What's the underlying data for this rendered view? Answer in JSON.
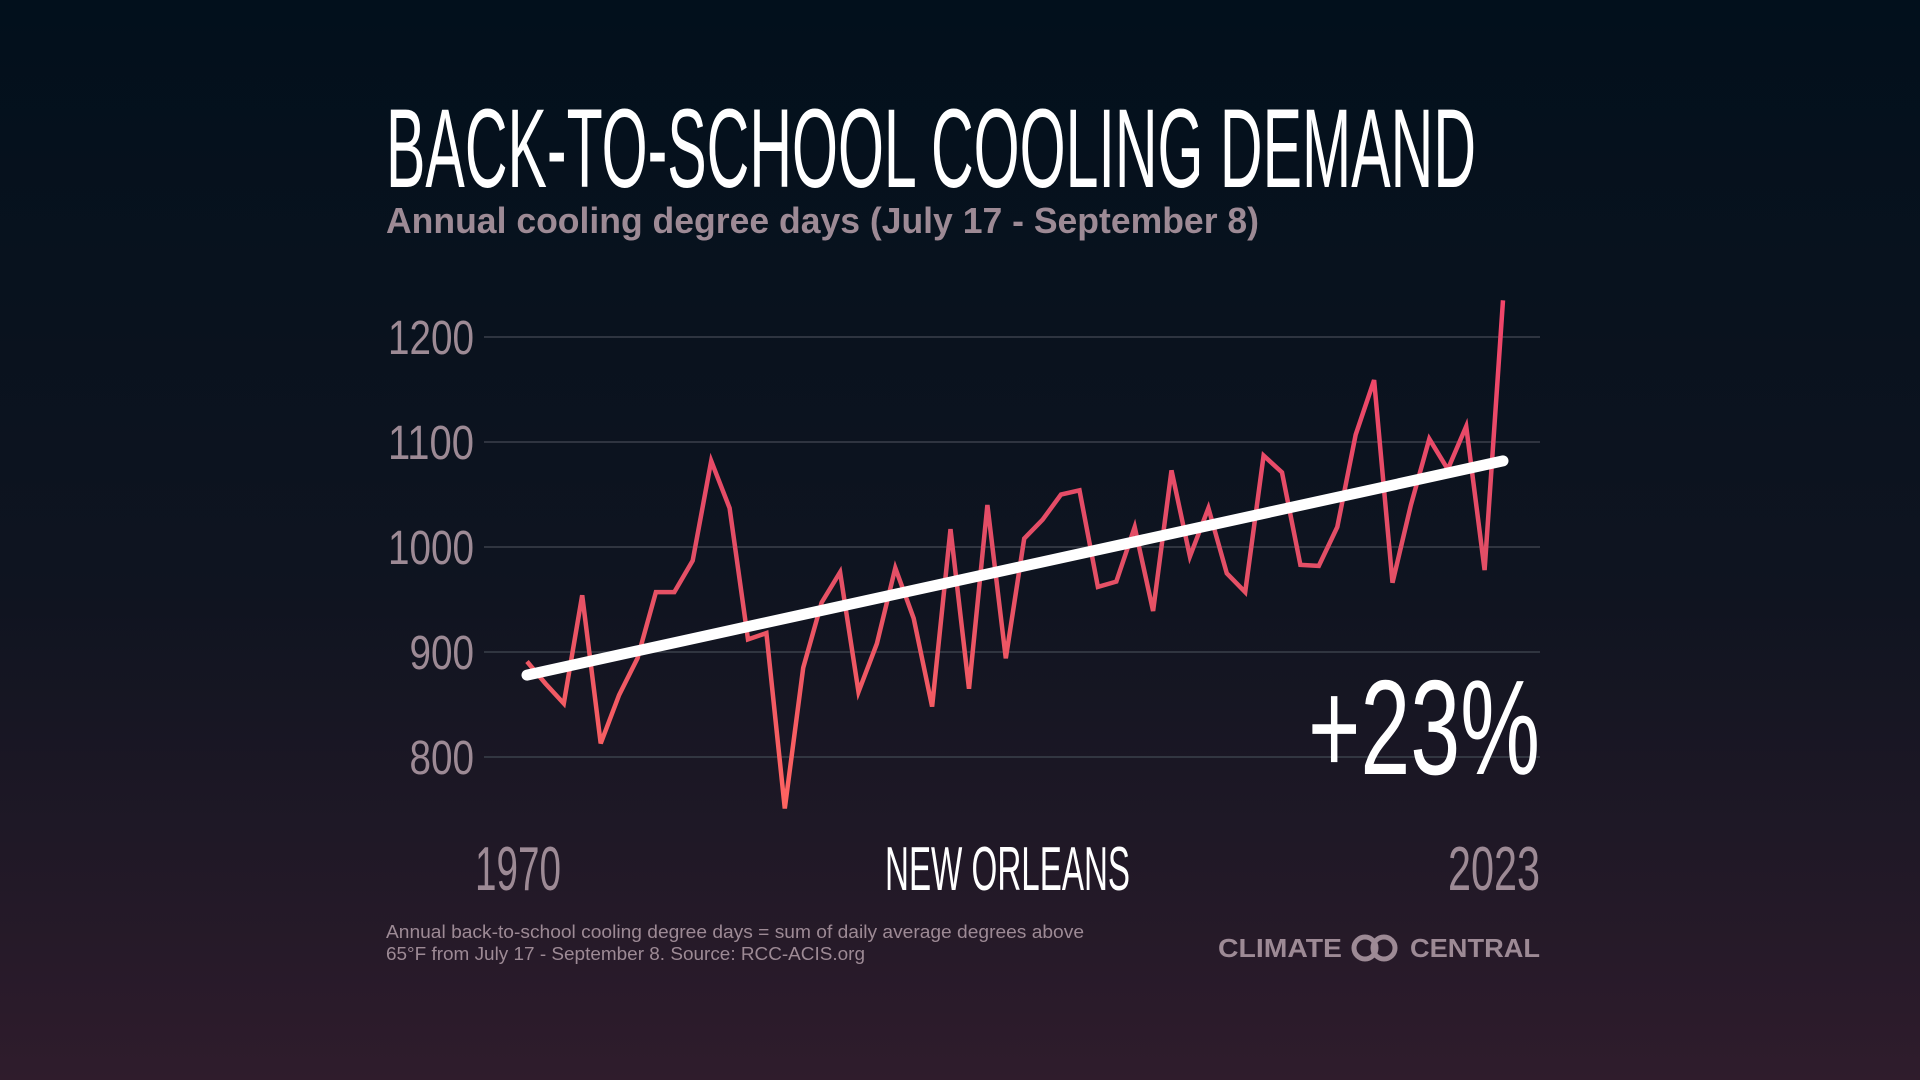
{
  "header": {
    "title": "BACK-TO-SCHOOL COOLING DEMAND",
    "subtitle": "Annual cooling degree days (July 17 - September 8)"
  },
  "chart_data": {
    "type": "line",
    "title": "BACK-TO-SCHOOL COOLING DEMAND",
    "subtitle": "Annual cooling degree days (July 17 - September 8)",
    "location_label": "NEW ORLEANS",
    "annotation": "+23%",
    "x_tick_labels": [
      "1970",
      "2023"
    ],
    "y_tick_labels": [
      "1200",
      "1100",
      "1000",
      "900",
      "800"
    ],
    "y_ticks": [
      1200,
      1100,
      1000,
      900,
      800
    ],
    "xlim": [
      1970,
      2023
    ],
    "ylim": [
      740,
      1240
    ],
    "grid": true,
    "x": [
      1970,
      1971,
      1972,
      1973,
      1974,
      1975,
      1976,
      1977,
      1978,
      1979,
      1980,
      1981,
      1982,
      1983,
      1984,
      1985,
      1986,
      1987,
      1988,
      1989,
      1990,
      1991,
      1992,
      1993,
      1994,
      1995,
      1996,
      1997,
      1998,
      1999,
      2000,
      2001,
      2002,
      2003,
      2004,
      2005,
      2006,
      2007,
      2008,
      2009,
      2010,
      2011,
      2012,
      2013,
      2014,
      2015,
      2016,
      2017,
      2018,
      2019,
      2020,
      2021,
      2022,
      2023
    ],
    "series": [
      {
        "values": [
          891,
          870,
          851,
          954,
          813,
          859,
          894,
          957,
          957,
          987,
          1082,
          1037,
          912,
          918,
          751,
          885,
          947,
          976,
          862,
          908,
          980,
          932,
          848,
          1017,
          865,
          1040,
          894,
          1008,
          1026,
          1050,
          1054,
          962,
          967,
          1019,
          939,
          1073,
          991,
          1037,
          975,
          957,
          1087,
          1071,
          983,
          982,
          1019,
          1107,
          1159,
          966,
          1040,
          1103,
          1074,
          1115,
          978,
          1235
        ],
        "color": "#f0506a"
      }
    ],
    "trend": {
      "start": [
        1970,
        878
      ],
      "end": [
        2023,
        1082
      ],
      "color": "#ffffff"
    }
  },
  "footer": {
    "note_line1": "Annual back-to-school cooling degree days = sum of daily average degrees above",
    "note_line2": "65°F from July 17 - September 8. Source: RCC-ACIS.org",
    "logo_left": "CLIMATE",
    "logo_right": "CENTRAL"
  },
  "colors": {
    "background_top": "#02101c",
    "background_bottom": "#2f1c2c",
    "muted_text": "#9d8a95",
    "gridline": "#3b404b",
    "series_line": "#f0506a",
    "trend_line": "#ffffff"
  }
}
